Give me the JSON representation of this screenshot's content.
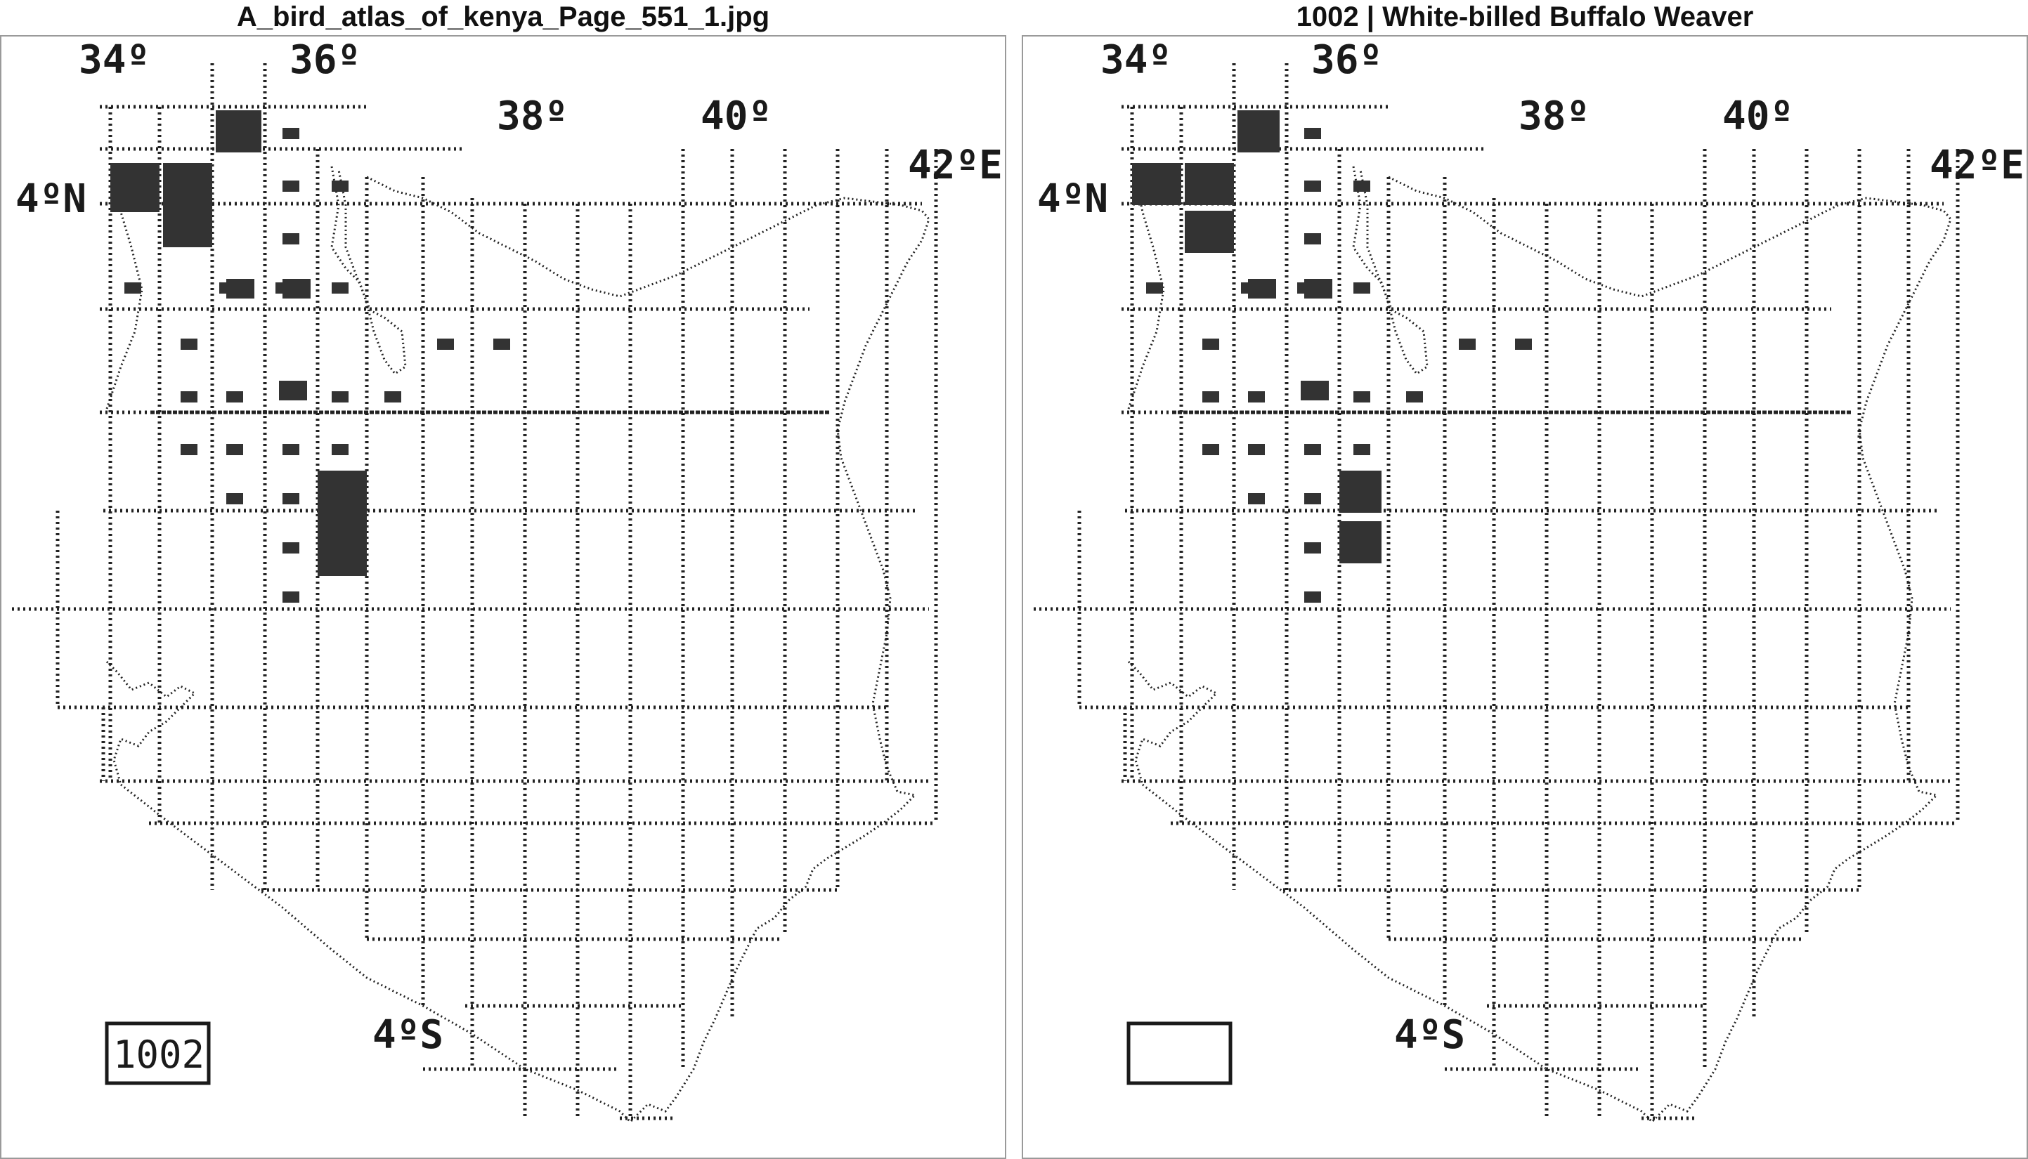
{
  "left_panel": {
    "title": "A_bird_atlas_of_kenya_Page_551_1.jpg",
    "map_labels": {
      "lon34": "34º",
      "lon36": "36º",
      "lon38": "38º",
      "lon40": "40º",
      "lon42": "42ºE",
      "lat4n": "4ºN",
      "lat4s": "4ºS"
    },
    "species_box": "1002"
  },
  "right_panel": {
    "title": "1002 | White-billed Buffalo Weaver",
    "map_labels": {
      "lon34": "34º",
      "lon36": "36º",
      "lon38": "38º",
      "lon40": "40º",
      "lon42": "42ºE",
      "lat4n": "4ºN",
      "lat4s": "4ºS"
    },
    "species_box": ""
  },
  "colors": {
    "grid": "#222222",
    "marker": "#333333",
    "border": "#9a9a9a"
  }
}
